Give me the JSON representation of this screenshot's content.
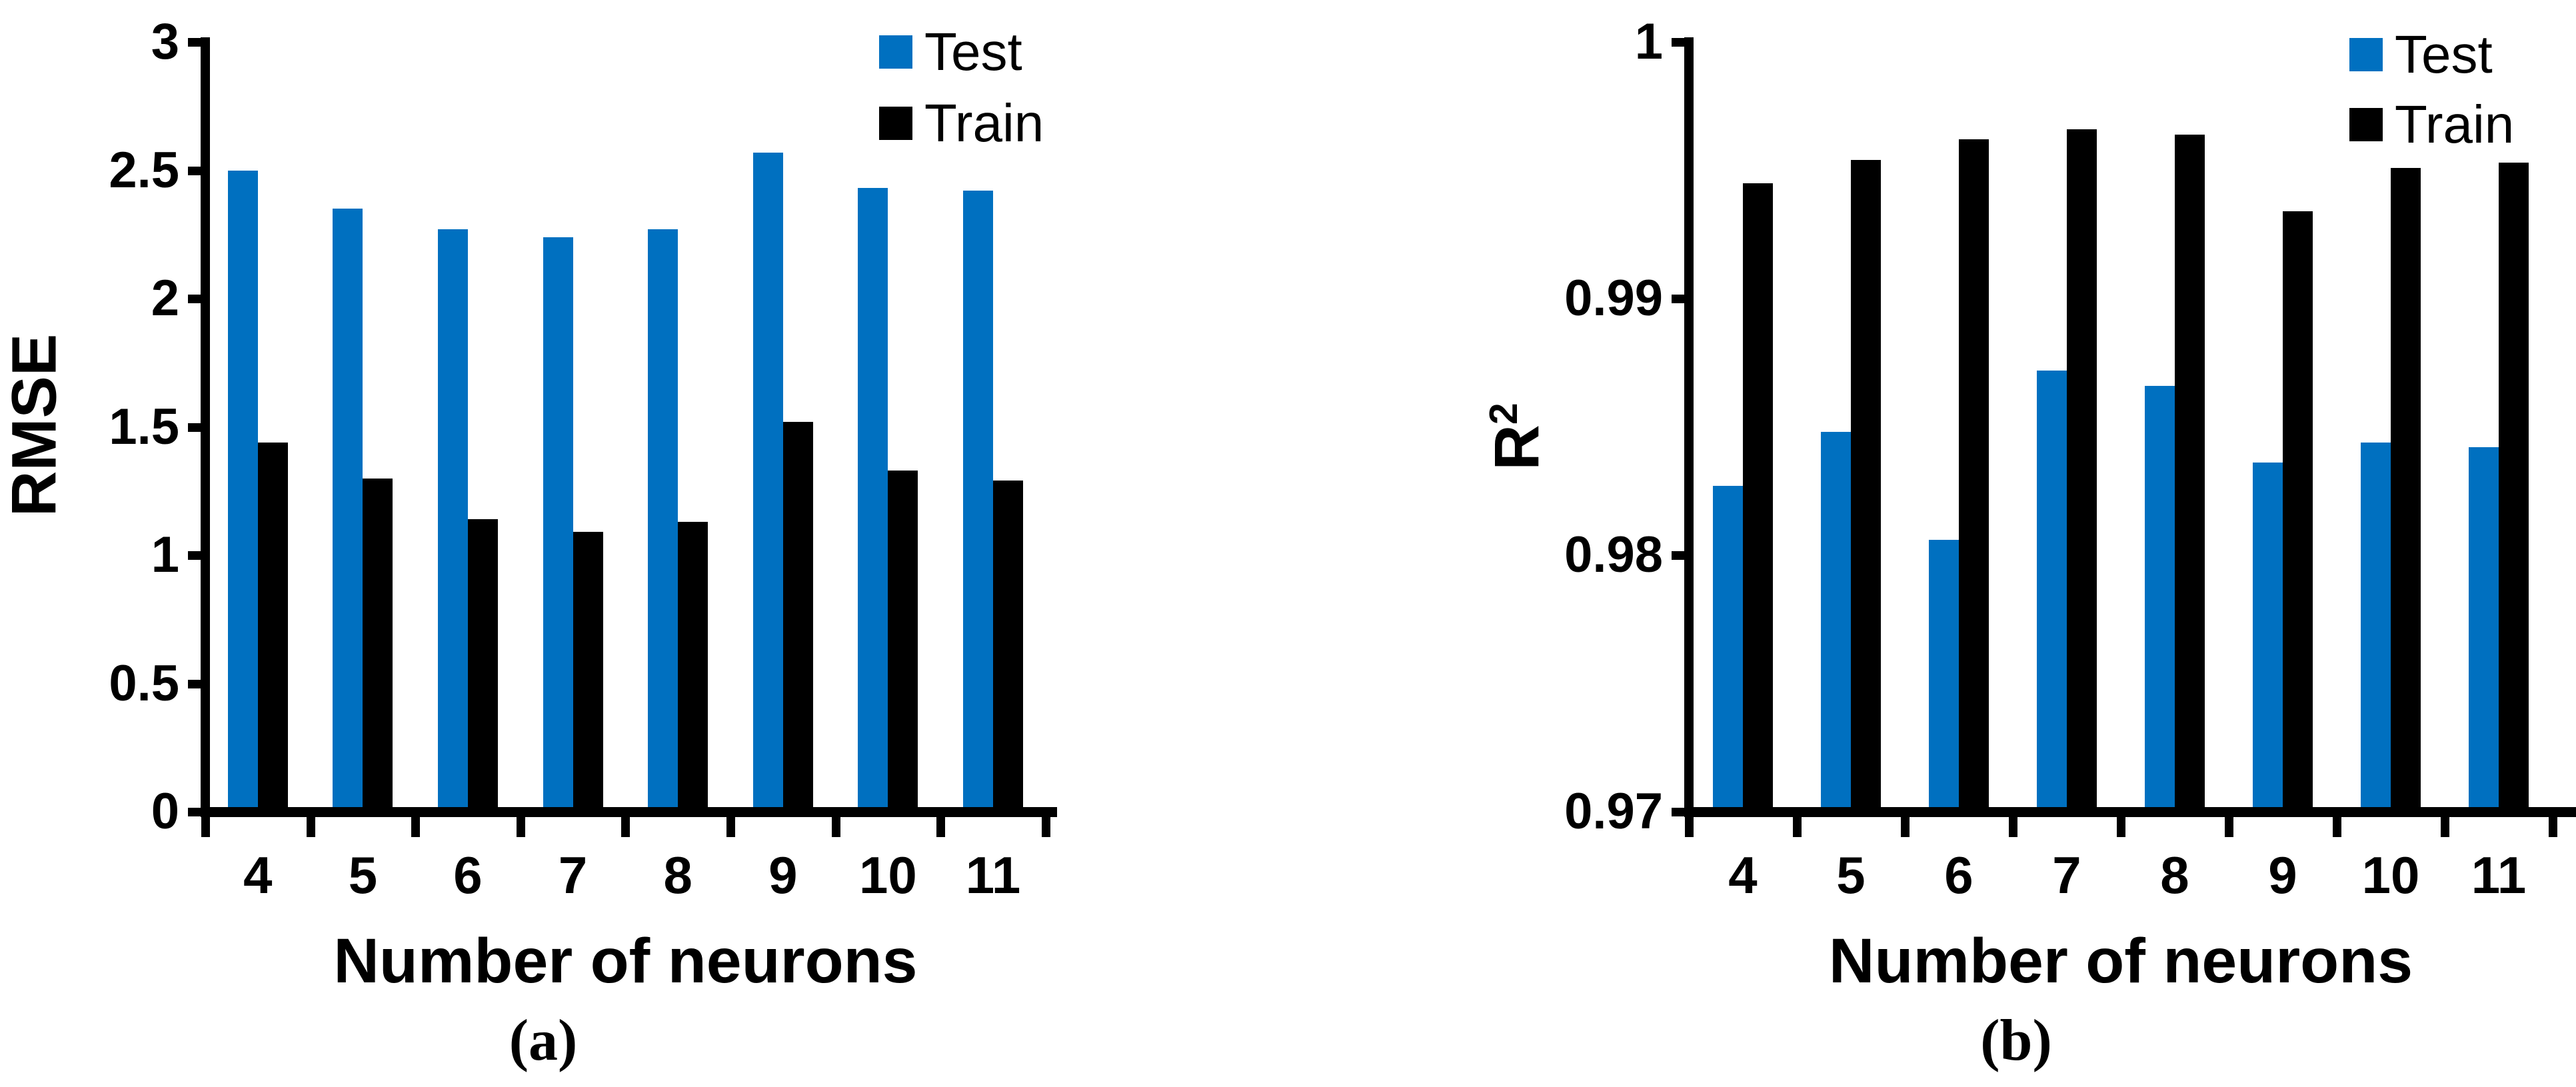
{
  "figure": {
    "background": "#ffffff",
    "series_colors": {
      "test": "#0070C0",
      "train": "#000000"
    }
  },
  "chart_data": [
    {
      "id": "a",
      "type": "bar",
      "title": "",
      "ylabel": "RMSE",
      "xlabel": "Number of neurons",
      "caption": "(a)",
      "ylim": [
        0,
        3
      ],
      "grid": false,
      "legend_position": "top-right",
      "yticks": [
        {
          "value": 0,
          "label": "0"
        },
        {
          "value": 0.5,
          "label": "0.5"
        },
        {
          "value": 1,
          "label": "1"
        },
        {
          "value": 1.5,
          "label": "1.5"
        },
        {
          "value": 2,
          "label": "2"
        },
        {
          "value": 2.5,
          "label": "2.5"
        },
        {
          "value": 3,
          "label": "3"
        }
      ],
      "categories": [
        "4",
        "5",
        "6",
        "7",
        "8",
        "9",
        "10",
        "11"
      ],
      "series": [
        {
          "name": "Test",
          "color": "#0070C0",
          "values": [
            2.5,
            2.35,
            2.27,
            2.24,
            2.27,
            2.57,
            2.43,
            2.42
          ]
        },
        {
          "name": "Train",
          "color": "#000000",
          "values": [
            1.44,
            1.3,
            1.14,
            1.09,
            1.13,
            1.52,
            1.33,
            1.29
          ]
        }
      ]
    },
    {
      "id": "b",
      "type": "bar",
      "title": "",
      "ylabel": "R²",
      "xlabel": "Number of neurons",
      "caption": "(b)",
      "ylim": [
        0.97,
        1
      ],
      "grid": false,
      "legend_position": "top-right",
      "yticks": [
        {
          "value": 0.97,
          "label": "0.97"
        },
        {
          "value": 0.98,
          "label": "0.98"
        },
        {
          "value": 0.99,
          "label": "0.99"
        },
        {
          "value": 1,
          "label": "1"
        }
      ],
      "categories": [
        "4",
        "5",
        "6",
        "7",
        "8",
        "9",
        "10",
        "11"
      ],
      "series": [
        {
          "name": "Test",
          "color": "#0070C0",
          "values": [
            0.9827,
            0.9848,
            0.9806,
            0.9872,
            0.9866,
            0.9836,
            0.9844,
            0.9842
          ]
        },
        {
          "name": "Train",
          "color": "#000000",
          "values": [
            0.9945,
            0.9954,
            0.9962,
            0.9966,
            0.9964,
            0.9934,
            0.9951,
            0.9953
          ]
        }
      ]
    }
  ]
}
